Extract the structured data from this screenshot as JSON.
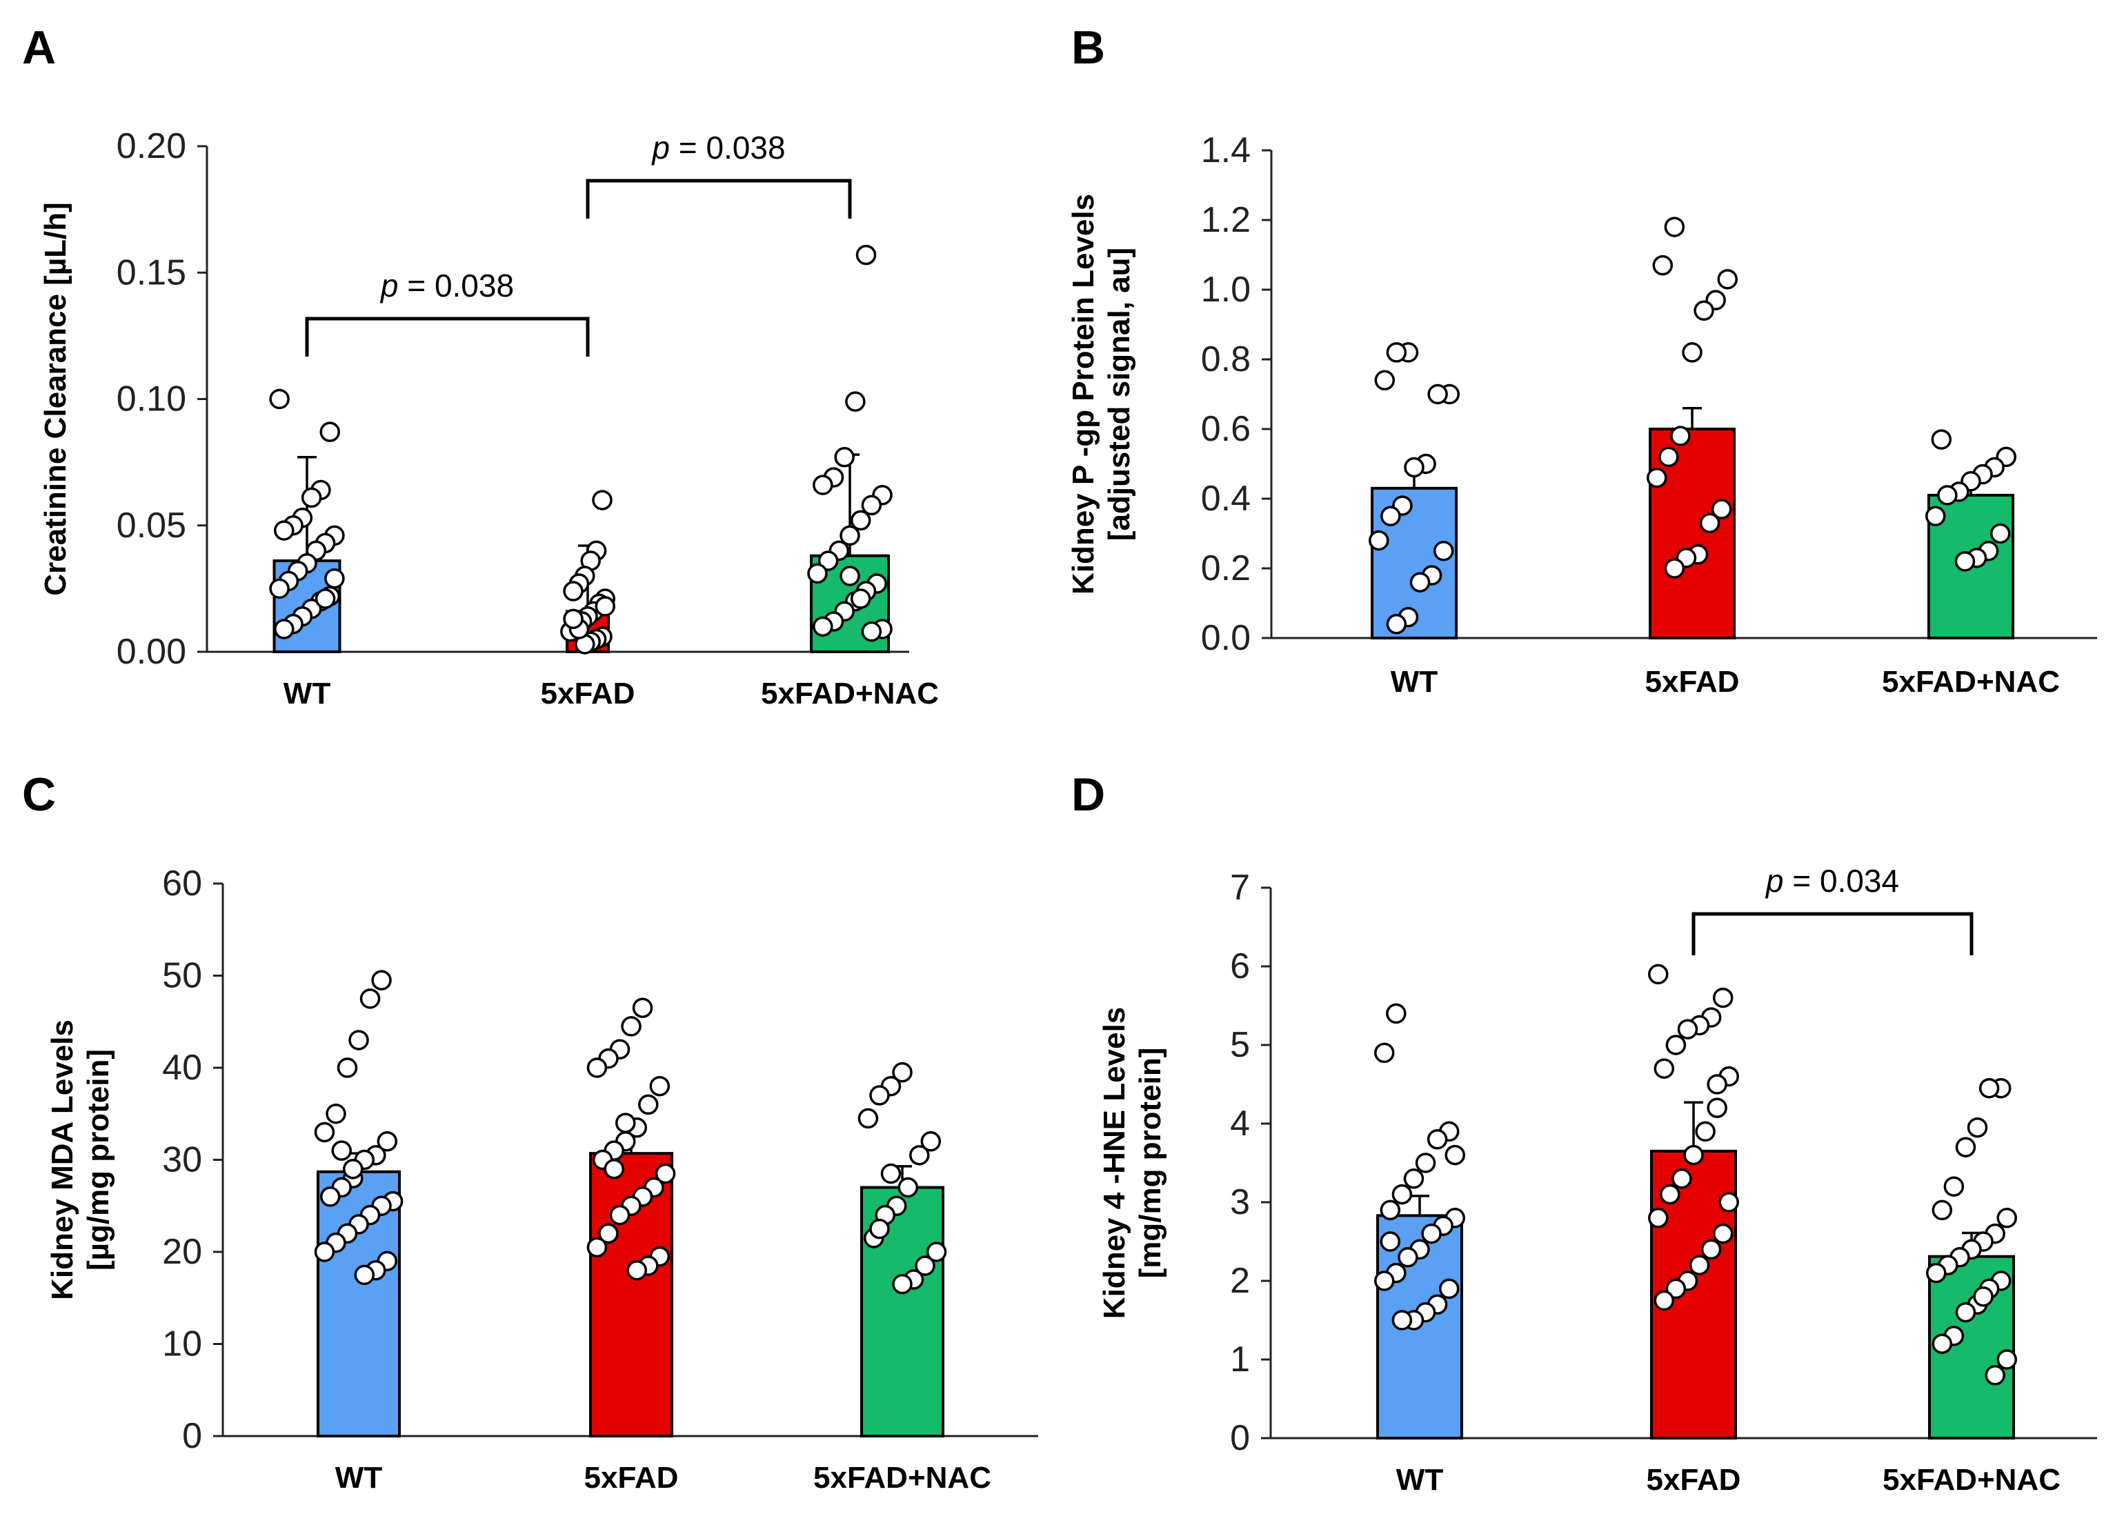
{
  "figure": {
    "colors": {
      "WT": "#5aa0f5",
      "5xFAD": "#e50000",
      "5xFAD+NAC": "#15bb6a"
    },
    "icon_point": "open-circle"
  },
  "chart_data": [
    {
      "id": "A",
      "type": "bar",
      "panel_label": "A",
      "ylabel": "Creatinine Clearance [µL/h]",
      "ylabel_lines": [
        "Creatinine Clearance [µL/h]"
      ],
      "ylim": [
        0,
        0.2
      ],
      "yticks": [
        0,
        0.05,
        0.1,
        0.15,
        0.2
      ],
      "ytick_labels": [
        "0.00",
        "0.05",
        "0.10",
        "0.15",
        "0.20"
      ],
      "categories": [
        "WT",
        "5xFAD",
        "5xFAD+NAC"
      ],
      "values": [
        0.036,
        0.016,
        0.038
      ],
      "errors": [
        0.041,
        0.026,
        0.04
      ],
      "points": [
        [
          0.1,
          0.087,
          0.064,
          0.061,
          0.053,
          0.05,
          0.048,
          0.046,
          0.043,
          0.04,
          0.035,
          0.032,
          0.028,
          0.025,
          0.022,
          0.02,
          0.017,
          0.014,
          0.011,
          0.009,
          0.029,
          0.021
        ],
        [
          0.06,
          0.04,
          0.036,
          0.03,
          0.027,
          0.024,
          0.021,
          0.019,
          0.016,
          0.014,
          0.012,
          0.01,
          0.008,
          0.006,
          0.005,
          0.004,
          0.003,
          0.009,
          0.013,
          0.018
        ],
        [
          0.157,
          0.099,
          0.077,
          0.069,
          0.066,
          0.062,
          0.058,
          0.052,
          0.046,
          0.04,
          0.036,
          0.031,
          0.027,
          0.024,
          0.02,
          0.016,
          0.012,
          0.01,
          0.009,
          0.008,
          0.021,
          0.03
        ]
      ],
      "brackets": [
        {
          "from": 0,
          "to": 1,
          "text_p": "p",
          "text_rest": " =  0.038"
        },
        {
          "from": 1,
          "to": 2,
          "text_p": "p",
          "text_rest": " =  0.038"
        }
      ]
    },
    {
      "id": "B",
      "type": "bar",
      "panel_label": "B",
      "ylabel": "Kidney P -gp Protein Levels [adjusted signal, au]",
      "ylabel_lines": [
        "Kidney P -gp Protein Levels",
        "[adjusted signal, au]"
      ],
      "ylim": [
        0,
        1.4
      ],
      "yticks": [
        0,
        0.2,
        0.4,
        0.6,
        0.8,
        1.0,
        1.2,
        1.4
      ],
      "ytick_labels": [
        "0.0",
        "0.2",
        "0.4",
        "0.6",
        "0.8",
        "1.0",
        "1.2",
        "1.4"
      ],
      "categories": [
        "WT",
        "5xFAD",
        "5xFAD+NAC"
      ],
      "values": [
        0.43,
        0.6,
        0.41
      ],
      "errors": [
        0.05,
        0.06,
        0.03
      ],
      "points": [
        [
          0.82,
          0.82,
          0.74,
          0.7,
          0.7,
          0.5,
          0.49,
          0.38,
          0.35,
          0.28,
          0.25,
          0.18,
          0.16,
          0.06,
          0.04
        ],
        [
          1.18,
          1.07,
          1.03,
          0.97,
          0.94,
          0.82,
          0.58,
          0.52,
          0.46,
          0.37,
          0.33,
          0.24,
          0.23,
          0.2
        ],
        [
          0.57,
          0.52,
          0.49,
          0.47,
          0.45,
          0.42,
          0.41,
          0.35,
          0.3,
          0.25,
          0.23,
          0.22
        ]
      ],
      "brackets": []
    },
    {
      "id": "C",
      "type": "bar",
      "panel_label": "C",
      "ylabel": "Kidney MDA Levels [µg/mg protein]",
      "ylabel_lines": [
        "Kidney MDA Levels",
        "[µg/mg protein]"
      ],
      "ylim": [
        0,
        60
      ],
      "yticks": [
        0,
        10,
        20,
        30,
        40,
        50,
        60
      ],
      "ytick_labels": [
        "0",
        "10",
        "20",
        "30",
        "40",
        "50",
        "60"
      ],
      "categories": [
        "WT",
        "5xFAD",
        "5xFAD+NAC"
      ],
      "values": [
        28.7,
        30.7,
        27.0
      ],
      "errors": [
        2.0,
        2.5,
        2.3
      ],
      "points": [
        [
          49.5,
          47.5,
          43.0,
          40.0,
          35.0,
          33.0,
          32.0,
          30.5,
          30.0,
          28.0,
          27.0,
          26.0,
          25.5,
          25.0,
          24.0,
          23.0,
          22.0,
          21.0,
          20.0,
          19.0,
          18.0,
          17.5,
          29.0,
          31.0
        ],
        [
          46.5,
          44.5,
          42.0,
          41.0,
          40.0,
          38.0,
          36.0,
          33.5,
          32.0,
          31.0,
          30.0,
          28.5,
          27.0,
          26.0,
          25.0,
          24.0,
          22.0,
          20.5,
          19.5,
          18.5,
          18.0,
          34.0,
          29.0
        ],
        [
          39.5,
          38.0,
          37.0,
          34.5,
          32.0,
          30.5,
          27.0,
          25.0,
          24.0,
          21.5,
          20.0,
          18.5,
          17.0,
          16.5,
          28.5,
          22.5
        ]
      ],
      "brackets": []
    },
    {
      "id": "D",
      "type": "bar",
      "panel_label": "D",
      "ylabel": "Kidney 4 -HNE Levels [mg/mg protein]",
      "ylabel_lines": [
        "Kidney 4 -HNE Levels",
        "[mg/mg protein]"
      ],
      "ylim": [
        0,
        7
      ],
      "yticks": [
        0,
        1,
        2,
        3,
        4,
        5,
        6,
        7
      ],
      "ytick_labels": [
        "0",
        "1",
        "2",
        "3",
        "4",
        "5",
        "6",
        "7"
      ],
      "categories": [
        "WT",
        "5xFAD",
        "5xFAD+NAC"
      ],
      "values": [
        2.83,
        3.65,
        2.31
      ],
      "errors": [
        0.25,
        0.62,
        0.3
      ],
      "points": [
        [
          5.4,
          4.9,
          3.9,
          3.8,
          3.5,
          3.3,
          3.1,
          2.9,
          2.8,
          2.7,
          2.6,
          2.4,
          2.3,
          2.1,
          2.0,
          1.9,
          1.7,
          1.6,
          1.5,
          1.5,
          2.5,
          3.6
        ],
        [
          5.9,
          5.6,
          5.35,
          5.25,
          5.2,
          5.0,
          4.7,
          4.6,
          4.2,
          3.9,
          3.6,
          3.3,
          3.1,
          2.8,
          2.6,
          2.4,
          2.2,
          2.0,
          1.9,
          1.75,
          3.0,
          4.5
        ],
        [
          4.45,
          4.45,
          3.95,
          3.7,
          3.2,
          2.9,
          2.8,
          2.6,
          2.5,
          2.4,
          2.3,
          2.2,
          2.1,
          2.0,
          1.9,
          1.7,
          1.6,
          1.3,
          1.2,
          1.0,
          0.8,
          1.8
        ]
      ],
      "brackets": [
        {
          "from": 1,
          "to": 2,
          "text_p": "p",
          "text_rest": " =  0.034"
        }
      ]
    }
  ]
}
